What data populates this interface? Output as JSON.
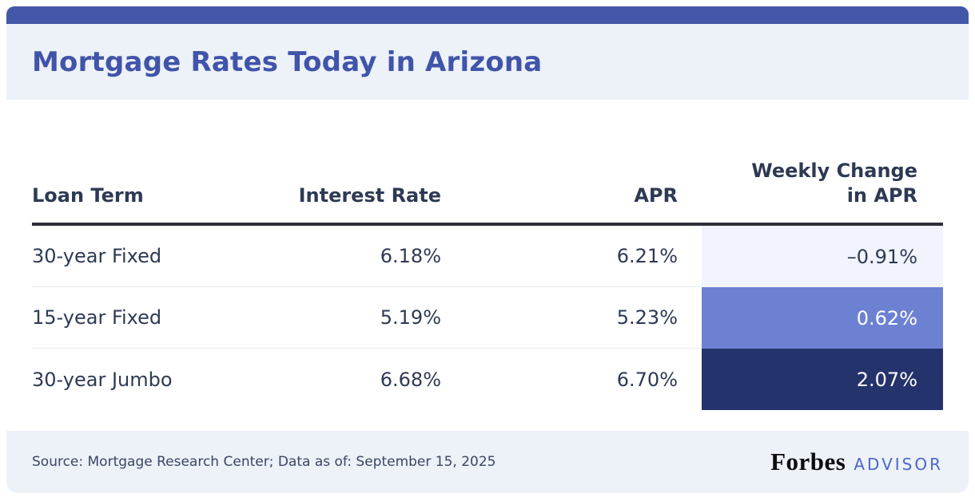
{
  "title": "Mortgage Rates Today in Arizona",
  "chart_data": {
    "type": "table",
    "title": "Mortgage Rates Today in Arizona",
    "columns": [
      "Loan Term",
      "Interest Rate",
      "APR",
      "Weekly Change in APR"
    ],
    "column_display": {
      "weekly": "Weekly Change\nin APR"
    },
    "rows": [
      [
        "30-year Fixed",
        "6.18%",
        "6.21%",
        "–0.91%"
      ],
      [
        "15-year Fixed",
        "5.19%",
        "5.23%",
        "0.62%"
      ],
      [
        "30-year Jumbo",
        "6.68%",
        "6.70%",
        "2.07%"
      ]
    ],
    "weekly_change_numeric": [
      -0.91,
      0.62,
      2.07
    ]
  },
  "weekly_styles": [
    {
      "bg": "#f1f4fc",
      "fg": "#2e3a54"
    },
    {
      "bg": "#6d81d2",
      "fg": "#ffffff"
    },
    {
      "bg": "#24336b",
      "fg": "#ffffff"
    }
  ],
  "colors": {
    "top_bar": "#4456a8",
    "band_background": "#edf1f8",
    "title_text": "#4054a9",
    "table_text": "#2e3a54",
    "header_rule": "#2f3038",
    "advisor_blue": "#4b67cb"
  },
  "footer": {
    "source": "Source: Mortgage Research Center; Data as of: September 15, 2025",
    "brand": "Forbes",
    "brand_suffix": "ADVISOR"
  }
}
